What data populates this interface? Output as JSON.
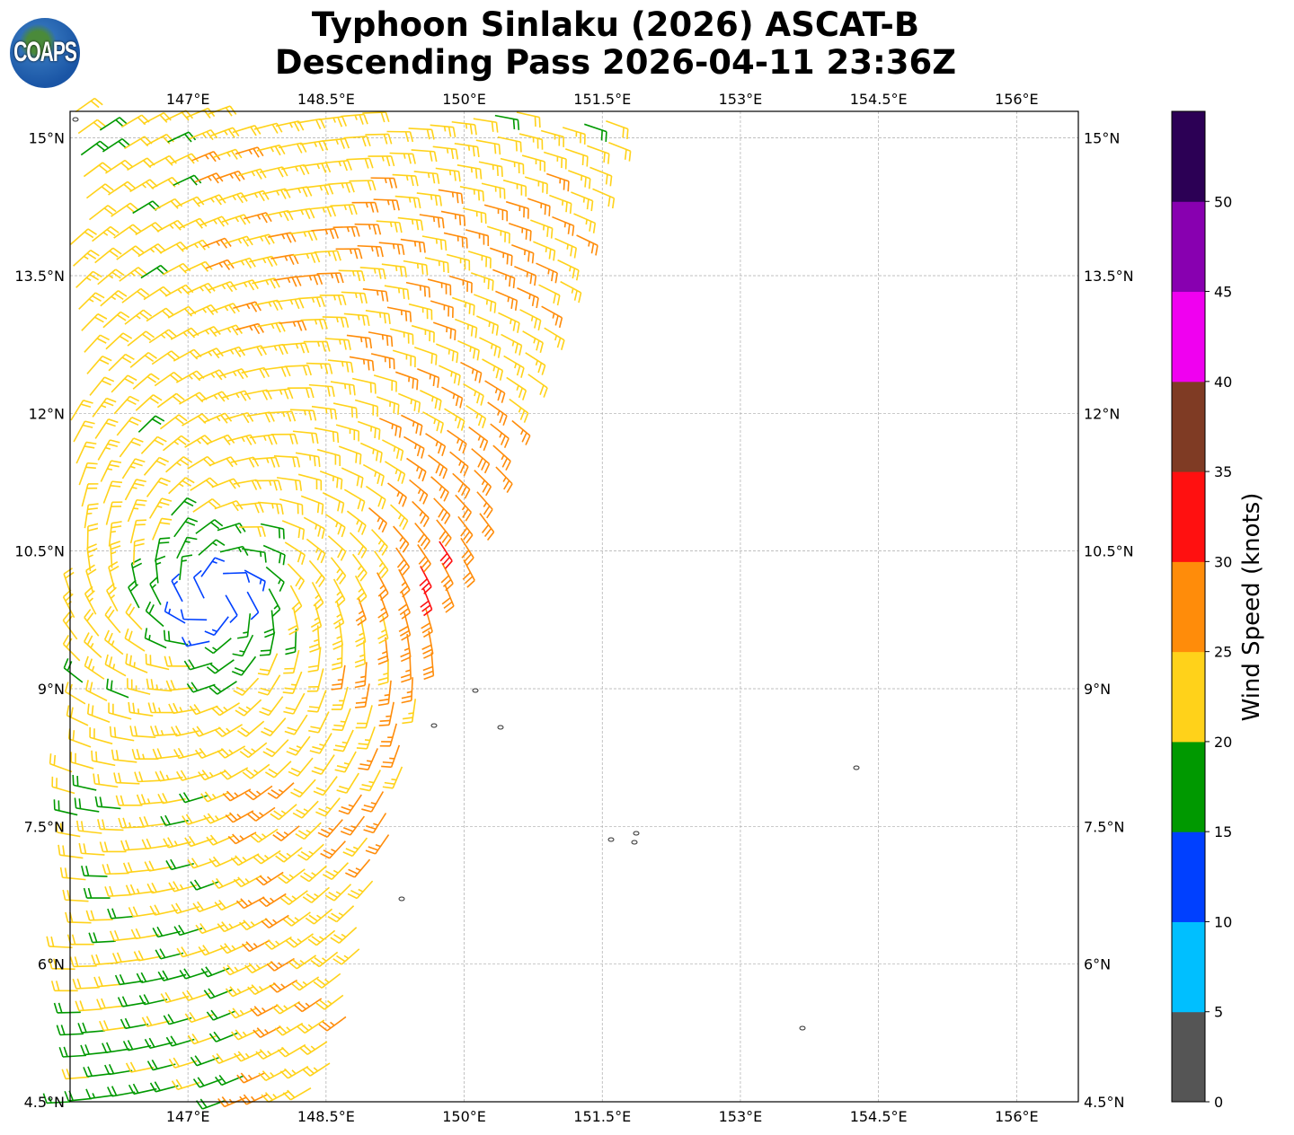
{
  "title": {
    "line1": "Typhoon Sinlaku (2026) ASCAT-B",
    "line2": "Descending Pass 2026-04-11 23:36Z"
  },
  "logo": {
    "text": "COAPS"
  },
  "map": {
    "lon_ticks": [
      "147°E",
      "148.5°E",
      "150°E",
      "151.5°E",
      "153°E",
      "154.5°E",
      "156°E"
    ],
    "lat_ticks": [
      "15°N",
      "13.5°N",
      "12°N",
      "10.5°N",
      "9°N",
      "7.5°N",
      "6°N",
      "4.5°N"
    ],
    "lon_values": [
      147,
      148.5,
      150,
      151.5,
      153,
      154.5,
      156
    ],
    "lat_values": [
      15,
      13.5,
      12,
      10.5,
      9,
      7.5,
      6,
      4.5
    ],
    "extent": {
      "lon_min": 145.72,
      "lon_max": 156.67,
      "lat_min": 4.5,
      "lat_max": 15.29
    }
  },
  "chart_data": {
    "type": "wind_barbs",
    "units": "knots",
    "approx_circulation_center": {
      "lon": 147.3,
      "lat": 10.0
    },
    "max_wind_range_kt": [
      30,
      40
    ]
  },
  "colorbar": {
    "label": "Wind Speed (knots)",
    "ticks": [
      "0",
      "5",
      "10",
      "15",
      "20",
      "25",
      "30",
      "35",
      "40",
      "45",
      "50"
    ],
    "levels": [
      0,
      5,
      10,
      15,
      20,
      25,
      30,
      35,
      40,
      45,
      50,
      55
    ],
    "colors": [
      "#555555",
      "#00bfff",
      "#0040ff",
      "#009900",
      "#ffd21a",
      "#ff8c0a",
      "#ff1010",
      "#7f3b24",
      "#f000f0",
      "#8800b0",
      "#2c0055"
    ]
  }
}
